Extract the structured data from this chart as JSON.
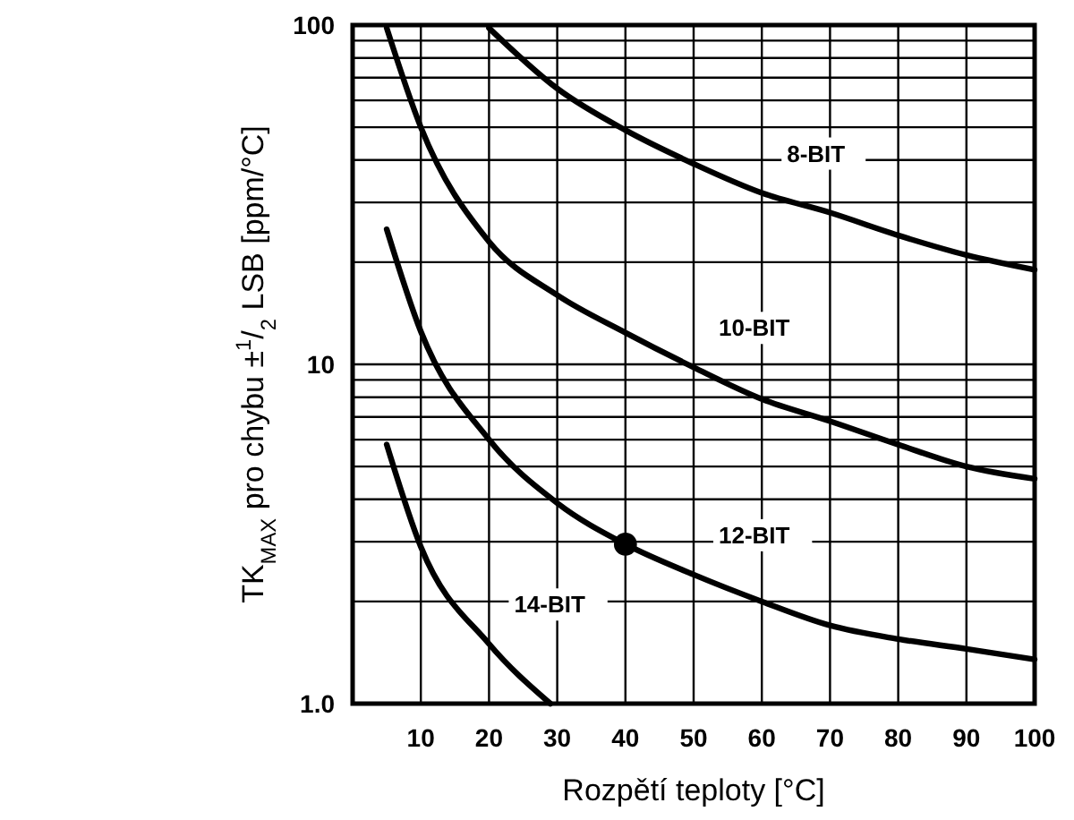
{
  "chart_data": {
    "type": "line",
    "xlabel": "Rozpětí teploty [°C]",
    "ylabel": "TK$_{MAX}$ pro chybu ±$^{1}$/$_{2}$ LSB [ppm/°C]",
    "log": "y",
    "grid": true,
    "marker": "none",
    "line_style": "solid",
    "xlim": [
      0,
      100
    ],
    "xticks": [
      10,
      20,
      30,
      40,
      50,
      60,
      70,
      80,
      90,
      100
    ],
    "ylim": [
      1,
      100
    ],
    "yticks": [
      {
        "value": 1,
        "label": "1.0"
      },
      {
        "value": 2,
        "label": null
      },
      {
        "value": 3,
        "label": null
      },
      {
        "value": 4,
        "label": null
      },
      {
        "value": 5,
        "label": null
      },
      {
        "value": 6,
        "label": null
      },
      {
        "value": 7,
        "label": null
      },
      {
        "value": 8,
        "label": null
      },
      {
        "value": 9,
        "label": null
      },
      10,
      {
        "value": 20,
        "label": null
      },
      {
        "value": 30,
        "label": null
      },
      {
        "value": 40,
        "label": null
      },
      {
        "value": 50,
        "label": null
      },
      {
        "value": 60,
        "label": null
      },
      {
        "value": 70,
        "label": null
      },
      {
        "value": 80,
        "label": null
      },
      {
        "value": 90,
        "label": null
      },
      100
    ],
    "series": [
      {
        "name": "8-BIT",
        "color": "#000000",
        "x": [
          20,
          30,
          40,
          50,
          60,
          70,
          80,
          90,
          100
        ],
        "values": [
          98,
          65,
          49,
          39,
          32,
          28,
          24,
          21,
          19
        ]
      },
      {
        "name": "10-BIT",
        "color": "#000000",
        "x": [
          5,
          10,
          20,
          30,
          40,
          50,
          60,
          70,
          80,
          90,
          100
        ],
        "values": [
          98,
          50,
          23,
          16,
          12.4,
          9.8,
          7.9,
          6.8,
          5.8,
          5.0,
          4.6
        ]
      },
      {
        "name": "12-BIT",
        "color": "#000000",
        "x": [
          5,
          10,
          20,
          30,
          40,
          50,
          60,
          70,
          80,
          90,
          100
        ],
        "values": [
          25,
          12.5,
          6.0,
          3.9,
          2.95,
          2.4,
          2.0,
          1.7,
          1.55,
          1.45,
          1.35
        ]
      },
      {
        "name": "14-BIT",
        "color": "#000000",
        "x": [
          5,
          10,
          20,
          29
        ],
        "values": [
          5.8,
          2.9,
          1.5,
          1.0
        ]
      },
      {
        "type": "scatter",
        "marker": "circle",
        "color": "#000000",
        "x": [
          40
        ],
        "values": [
          2.95
        ]
      }
    ]
  }
}
